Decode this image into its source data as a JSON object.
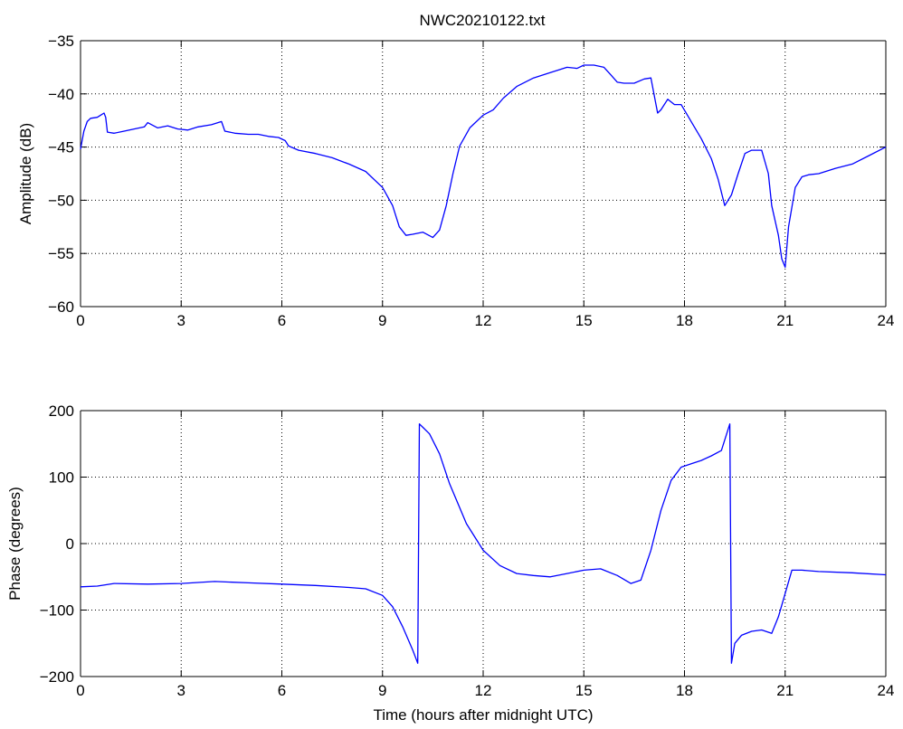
{
  "figure_title": "NWC20210122.txt",
  "line_color": "#0000ff",
  "chart_data": [
    {
      "type": "line",
      "title": "NWC20210122.txt",
      "xlabel": "",
      "ylabel": "Amplitude (dB)",
      "xlim": [
        0,
        24
      ],
      "ylim": [
        -60,
        -35
      ],
      "xticks": [
        0,
        3,
        6,
        9,
        12,
        15,
        18,
        21,
        24
      ],
      "yticks": [
        -60,
        -55,
        -50,
        -45,
        -40,
        -35
      ],
      "grid": true,
      "series": [
        {
          "x": [
            0,
            0.1,
            0.2,
            0.3,
            0.5,
            0.6,
            0.7,
            0.75,
            0.8,
            1.0,
            1.3,
            1.6,
            1.9,
            2.0,
            2.3,
            2.6,
            2.9,
            3.2,
            3.5,
            3.9,
            4.2,
            4.3,
            4.6,
            5.0,
            5.3,
            5.6,
            5.9,
            6.1,
            6.2,
            6.5,
            7.0,
            7.5,
            8.0,
            8.5,
            9.0,
            9.3,
            9.5,
            9.7,
            9.9,
            10.2,
            10.5,
            10.7,
            10.9,
            11.1,
            11.3,
            11.6,
            12.0,
            12.3,
            12.6,
            13.0,
            13.5,
            14.0,
            14.5,
            14.8,
            15.0,
            15.3,
            15.6,
            15.8,
            16.0,
            16.2,
            16.5,
            16.8,
            17.0,
            17.2,
            17.3,
            17.5,
            17.7,
            17.9,
            18.2,
            18.5,
            18.8,
            19.0,
            19.2,
            19.4,
            19.6,
            19.8,
            20.0,
            20.3,
            20.5,
            20.6,
            20.8,
            20.9,
            21.0,
            21.1,
            21.3,
            21.5,
            21.7,
            22.0,
            22.5,
            23.0,
            23.5,
            24.0
          ],
          "y": [
            -45.2,
            -43.5,
            -42.6,
            -42.3,
            -42.2,
            -42.0,
            -41.8,
            -42.2,
            -43.6,
            -43.7,
            -43.5,
            -43.3,
            -43.1,
            -42.7,
            -43.2,
            -43.0,
            -43.3,
            -43.4,
            -43.1,
            -42.9,
            -42.6,
            -43.5,
            -43.7,
            -43.8,
            -43.8,
            -44.0,
            -44.1,
            -44.4,
            -44.9,
            -45.3,
            -45.6,
            -46.0,
            -46.6,
            -47.3,
            -48.8,
            -50.5,
            -52.5,
            -53.3,
            -53.2,
            -53.0,
            -53.5,
            -52.8,
            -50.5,
            -47.5,
            -44.9,
            -43.2,
            -42.0,
            -41.5,
            -40.4,
            -39.3,
            -38.5,
            -38.0,
            -37.5,
            -37.6,
            -37.3,
            -37.3,
            -37.5,
            -38.2,
            -38.9,
            -39.0,
            -39.0,
            -38.6,
            -38.5,
            -41.8,
            -41.5,
            -40.5,
            -41.0,
            -41.0,
            -42.6,
            -44.2,
            -46.1,
            -48.0,
            -50.5,
            -49.5,
            -47.5,
            -45.6,
            -45.3,
            -45.3,
            -47.5,
            -50.5,
            -53.3,
            -55.5,
            -56.3,
            -52.5,
            -48.8,
            -47.8,
            -47.6,
            -47.5,
            -47.0,
            -46.6,
            -45.8,
            -45.0
          ]
        }
      ]
    },
    {
      "type": "line",
      "title": "",
      "xlabel": "Time (hours after midnight UTC)",
      "ylabel": "Phase (degrees)",
      "xlim": [
        0,
        24
      ],
      "ylim": [
        -200,
        200
      ],
      "xticks": [
        0,
        3,
        6,
        9,
        12,
        15,
        18,
        21,
        24
      ],
      "yticks": [
        -200,
        -100,
        0,
        100,
        200
      ],
      "grid": true,
      "series": [
        {
          "x": [
            0,
            0.5,
            1.0,
            2.0,
            3.0,
            4.0,
            5.0,
            6.0,
            7.0,
            8.0,
            8.5,
            9.0,
            9.3,
            9.6,
            9.9,
            10.05,
            10.1,
            10.2,
            10.4,
            10.7,
            11.0,
            11.5,
            12.0,
            12.5,
            13.0,
            13.5,
            14.0,
            14.5,
            15.0,
            15.5,
            16.0,
            16.4,
            16.7,
            17.0,
            17.3,
            17.6,
            17.9,
            18.2,
            18.5,
            18.8,
            19.1,
            19.35,
            19.4,
            19.5,
            19.7,
            20.0,
            20.3,
            20.6,
            20.8,
            21.0,
            21.2,
            21.5,
            22.0,
            23.0,
            24.0
          ],
          "y": [
            -65,
            -64,
            -60,
            -61,
            -60,
            -57,
            -59,
            -61,
            -63,
            -66,
            -68,
            -78,
            -95,
            -125,
            -160,
            -180,
            180,
            175,
            165,
            135,
            90,
            30,
            -10,
            -33,
            -45,
            -48,
            -50,
            -45,
            -40,
            -38,
            -48,
            -60,
            -55,
            -10,
            50,
            95,
            115,
            120,
            125,
            132,
            140,
            180,
            -180,
            -150,
            -138,
            -132,
            -130,
            -135,
            -110,
            -75,
            -40,
            -40,
            -42,
            -44,
            -47
          ]
        }
      ]
    }
  ]
}
